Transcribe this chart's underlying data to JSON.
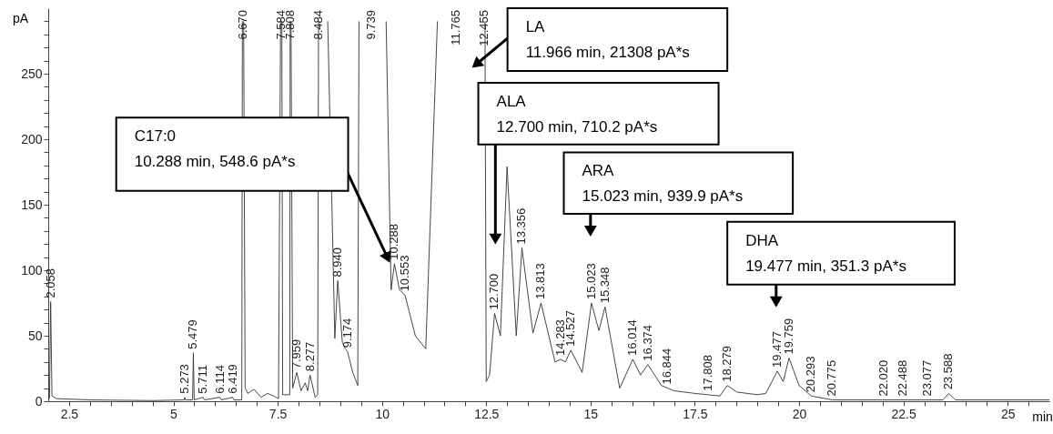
{
  "chart_data": {
    "type": "line",
    "xlabel": "min",
    "ylabel": "pA",
    "xlim": [
      2,
      26
    ],
    "ylim": [
      0,
      300
    ],
    "xticks": [
      2.5,
      {
        "value": 3,
        "label": null
      },
      {
        "value": 3.5,
        "label": null
      },
      {
        "value": 4,
        "label": null
      },
      {
        "value": 4.5,
        "label": null
      },
      5,
      {
        "value": 5.5,
        "label": null
      },
      {
        "value": 6,
        "label": null
      },
      {
        "value": 6.5,
        "label": null
      },
      {
        "value": 7,
        "label": null
      },
      7.5,
      {
        "value": 8,
        "label": null
      },
      {
        "value": 8.5,
        "label": null
      },
      {
        "value": 9,
        "label": null
      },
      {
        "value": 9.5,
        "label": null
      },
      10,
      {
        "value": 10.5,
        "label": null
      },
      {
        "value": 11,
        "label": null
      },
      {
        "value": 11.5,
        "label": null
      },
      {
        "value": 12,
        "label": null
      },
      12.5,
      {
        "value": 13,
        "label": null
      },
      {
        "value": 13.5,
        "label": null
      },
      {
        "value": 14,
        "label": null
      },
      {
        "value": 14.5,
        "label": null
      },
      15,
      {
        "value": 15.5,
        "label": null
      },
      {
        "value": 16,
        "label": null
      },
      {
        "value": 16.5,
        "label": null
      },
      {
        "value": 17,
        "label": null
      },
      17.5,
      {
        "value": 18,
        "label": null
      },
      {
        "value": 18.5,
        "label": null
      },
      {
        "value": 19,
        "label": null
      },
      {
        "value": 19.5,
        "label": null
      },
      20,
      {
        "value": 20.5,
        "label": null
      },
      {
        "value": 21,
        "label": null
      },
      {
        "value": 21.5,
        "label": null
      },
      {
        "value": 22,
        "label": null
      },
      22.5,
      {
        "value": 23,
        "label": null
      },
      {
        "value": 23.5,
        "label": null
      },
      {
        "value": 24,
        "label": null
      },
      {
        "value": 24.5,
        "label": null
      },
      25,
      {
        "value": 25.5,
        "label": null
      }
    ],
    "yticks": [
      0,
      {
        "value": 10,
        "label": null
      },
      {
        "value": 20,
        "label": null
      },
      {
        "value": 30,
        "label": null
      },
      {
        "value": 40,
        "label": null
      },
      50,
      {
        "value": 60,
        "label": null
      },
      {
        "value": 70,
        "label": null
      },
      {
        "value": 80,
        "label": null
      },
      {
        "value": 90,
        "label": null
      },
      100,
      {
        "value": 110,
        "label": null
      },
      {
        "value": 120,
        "label": null
      },
      {
        "value": 130,
        "label": null
      },
      {
        "value": 140,
        "label": null
      },
      150,
      {
        "value": 160,
        "label": null
      },
      {
        "value": 170,
        "label": null
      },
      {
        "value": 180,
        "label": null
      },
      {
        "value": 190,
        "label": null
      },
      200,
      {
        "value": 210,
        "label": null
      },
      {
        "value": 220,
        "label": null
      },
      {
        "value": 230,
        "label": null
      },
      {
        "value": 240,
        "label": null
      },
      250,
      {
        "value": 260,
        "label": null
      },
      {
        "value": 270,
        "label": null
      },
      {
        "value": 280,
        "label": null
      },
      {
        "value": 290,
        "label": null
      }
    ],
    "series": [
      {
        "color": "#333333",
        "x": [
          2.03,
          2.058,
          2.09,
          2.2,
          3,
          4.5,
          5.26,
          5.273,
          5.29,
          5.46,
          5.479,
          5.5,
          5.711,
          5.75,
          6.114,
          6.15,
          6.419,
          6.45,
          6.64,
          6.655,
          6.67,
          6.685,
          6.72,
          6.788,
          6.869,
          6.941,
          7.02,
          7.1,
          7.26,
          7.398,
          7.52,
          7.57,
          7.585,
          7.6,
          7.62,
          7.79,
          7.8,
          7.81,
          7.82,
          7.86,
          7.959,
          8.06,
          8.16,
          8.22,
          8.277,
          8.4,
          8.46,
          8.48,
          8.6,
          8.7,
          8.8,
          8.87,
          8.94,
          9.05,
          9.12,
          9.174,
          9.3,
          9.42,
          9.45,
          9.739,
          10.1,
          10.22,
          10.3,
          10.42,
          10.553,
          10.8,
          11.05,
          11.33,
          11.765,
          12.47,
          12.5,
          12.58,
          12.7,
          12.84,
          13,
          13.22,
          13.356,
          13.62,
          13.813,
          14.15,
          14.283,
          14.4,
          14.527,
          14.8,
          15.023,
          15.2,
          15.348,
          15.7,
          16.014,
          16.2,
          16.374,
          16.7,
          17,
          17.5,
          17.808,
          18.1,
          18.279,
          18.508,
          19,
          19.2,
          19.35,
          19.477,
          19.62,
          19.759,
          20,
          20.293,
          20.8,
          22,
          23.45,
          23.588,
          23.75,
          26
        ],
        "values": [
          2,
          76,
          4,
          2,
          1,
          0.5,
          1,
          3,
          1,
          1,
          37,
          1,
          3,
          1,
          3,
          1,
          3,
          1,
          1,
          290,
          null,
          290,
          10,
          6,
          8,
          9,
          6,
          3,
          6,
          4,
          2,
          290,
          null,
          290,
          5,
          5,
          290,
          null,
          290,
          10,
          22,
          8,
          14,
          8,
          20,
          3,
          5,
          290,
          null,
          290,
          150,
          48,
          92,
          45,
          40,
          38,
          22,
          12,
          290,
          null,
          290,
          85,
          105,
          85,
          81,
          50,
          40,
          290,
          null,
          290,
          15,
          20,
          67,
          50,
          179,
          50,
          117,
          52,
          75,
          30,
          32,
          30,
          39,
          22,
          75,
          54,
          72,
          10,
          32,
          20,
          28,
          12,
          8,
          6,
          5,
          4,
          12,
          7,
          5,
          6,
          15,
          23,
          15,
          33,
          12,
          4,
          1,
          1,
          1,
          6,
          1,
          1
        ]
      }
    ],
    "annotations": [
      "C17:0\n10.288 min, 548.6 pA*s",
      "LA\n11.966 min, 21308 pA*s",
      "ALA\n12.700 min, 710.2 pA*s",
      "ARA\n15.023 min, 939.9 pA*s",
      "DHA\n19.477 min, 351.3 pA*s",
      "9.739",
      "11.765",
      {
        "text": "2.058",
        "x": 2.058,
        "y": 76
      },
      {
        "text": "5.273",
        "x": 5.273,
        "y": 3
      },
      {
        "text": "5.479",
        "x": 5.479,
        "y": 37
      },
      {
        "text": "5.711",
        "x": 5.711,
        "y": 3
      },
      {
        "text": "6.114",
        "x": 6.114,
        "y": 3
      },
      {
        "text": "6.419",
        "x": 6.419,
        "y": 3
      },
      {
        "text": "6.670",
        "x": 6.67
      },
      {
        "text": "7.584",
        "x": 7.584
      },
      {
        "text": "7.808",
        "x": 7.808
      },
      {
        "text": "7.959",
        "x": 7.959,
        "y": 22
      },
      {
        "text": "8.277",
        "x": 8.277,
        "y": 20
      },
      {
        "text": "8.484",
        "x": 8.484
      },
      {
        "text": "8.940",
        "x": 8.94,
        "y": 92
      },
      {
        "text": "9.174",
        "x": 9.174,
        "y": 38
      },
      {
        "text": "10.288",
        "x": 10.288,
        "y": 105
      },
      {
        "text": "10.553",
        "x": 10.553,
        "y": 81
      },
      {
        "text": "12.455",
        "x": 12.455
      },
      {
        "text": "12.700",
        "x": 12.7,
        "y": 67
      },
      {
        "text": "13.356",
        "x": 13.356,
        "y": 117
      },
      {
        "text": "13.813",
        "x": 13.813,
        "y": 75
      },
      {
        "text": "14.283",
        "x": 14.283,
        "y": 32
      },
      {
        "text": "14.527",
        "x": 14.527,
        "y": 39
      },
      {
        "text": "15.023",
        "x": 15.023,
        "y": 75
      },
      {
        "text": "15.348",
        "x": 15.348,
        "y": 72
      },
      {
        "text": "16.014",
        "x": 16.014,
        "y": 32
      },
      {
        "text": "16.374",
        "x": 16.374,
        "y": 28
      },
      {
        "text": "16.844",
        "x": 16.844,
        "y": 10
      },
      {
        "text": "17.808",
        "x": 17.808,
        "y": 5
      },
      {
        "text": "18.279",
        "x": 18.279,
        "y": 12
      },
      {
        "text": "19.477",
        "x": 19.477,
        "y": 23
      },
      {
        "text": "19.759",
        "x": 19.759,
        "y": 33
      },
      {
        "text": "20.293",
        "x": 20.293,
        "y": 4
      },
      {
        "text": "20.775",
        "x": 20.775,
        "y": 1
      },
      {
        "text": "22.020",
        "x": 22.02,
        "y": 1
      },
      {
        "text": "22.488",
        "x": 22.488,
        "y": 1
      },
      {
        "text": "23.077",
        "x": 23.077,
        "y": 1
      },
      {
        "text": "23.588",
        "x": 23.588,
        "y": 6
      }
    ]
  }
}
